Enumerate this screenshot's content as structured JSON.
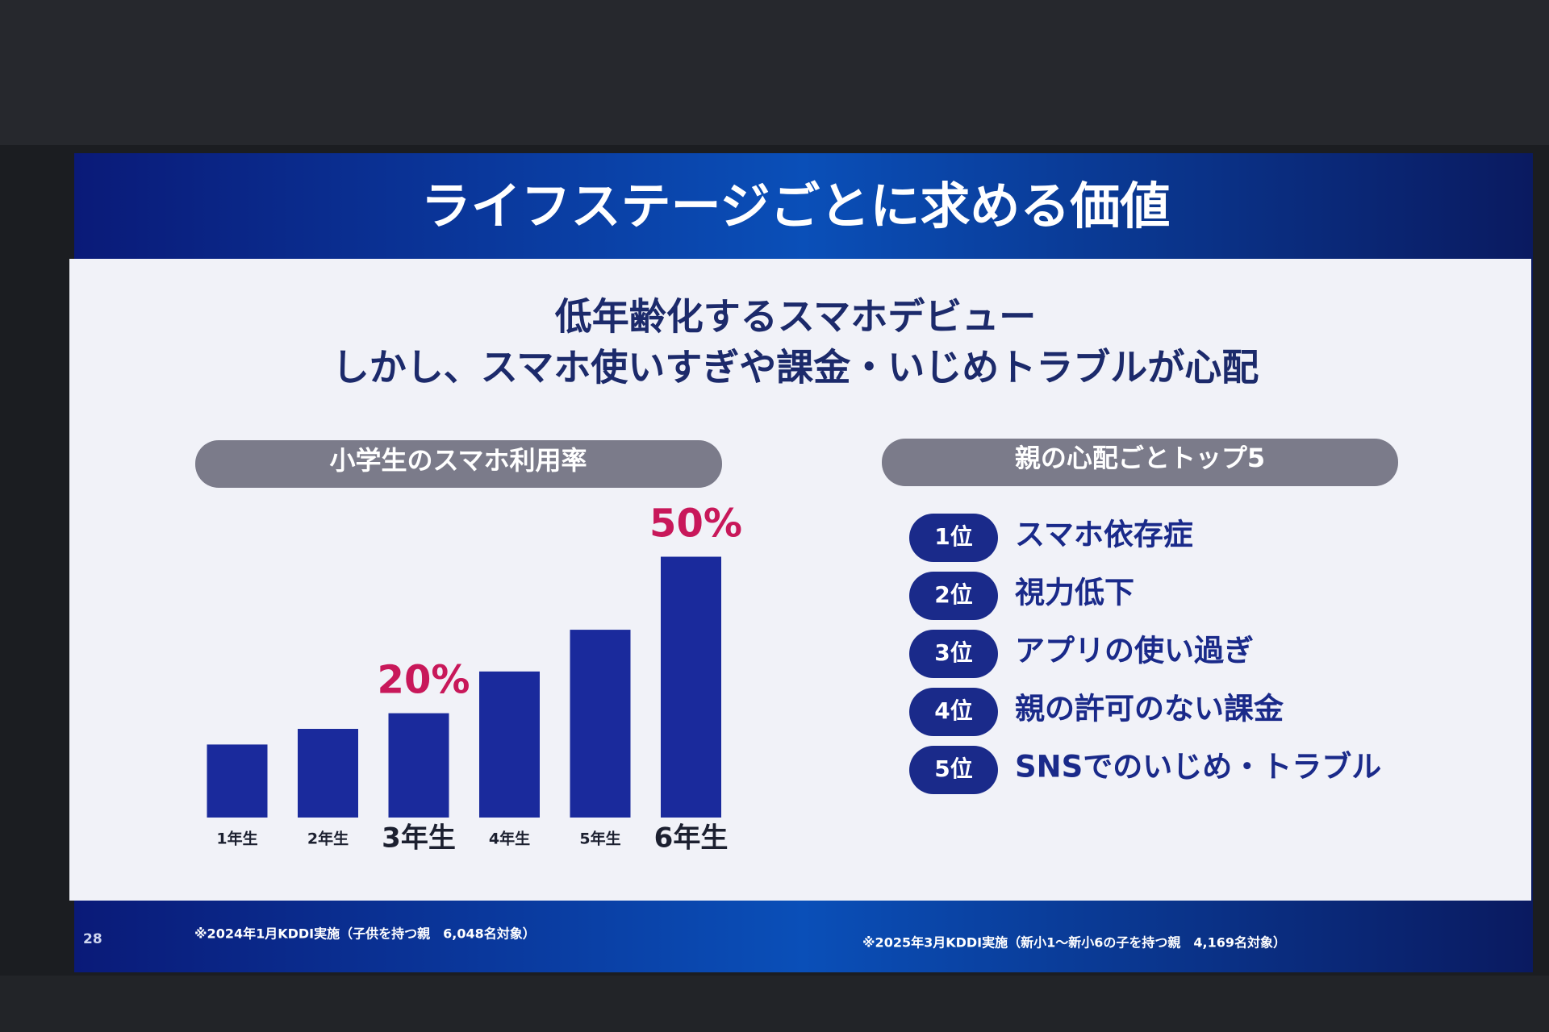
{
  "slide": {
    "title": "ライフステージごとに求める価値",
    "subtitle_lines": [
      "低年齢化するスマホデビュー",
      "しかし、スマホ使いすぎや課金・いじめトラブルが心配"
    ],
    "page_number": "28",
    "left_note": "※2024年1月KDDI実施（子供を持つ親　6,048名対象）",
    "right_panel": {
      "title": "親の心配ごとトップ5",
      "ranks": [
        {
          "rank": "1位",
          "item": "スマホ依存症"
        },
        {
          "rank": "2位",
          "item": "視力低下"
        },
        {
          "rank": "3位",
          "item": "アプリの使い過ぎ"
        },
        {
          "rank": "4位",
          "item": "親の許可のない課金"
        },
        {
          "rank": "5位",
          "item": "SNSでのいじめ・トラブル"
        }
      ],
      "note": "※2025年3月KDDI実施（新小1〜新小6の子を持つ親　4,169名対象）"
    }
  },
  "chart_data": {
    "type": "bar",
    "title": "小学生のスマホ利用率",
    "categories": [
      "1年生",
      "2年生",
      "3年生",
      "4年生",
      "5年生",
      "6年生"
    ],
    "values": [
      14,
      17,
      20,
      28,
      36,
      50
    ],
    "value_labels": [
      null,
      null,
      "20%",
      null,
      null,
      "50%"
    ],
    "color": "#1a2a9c",
    "label_color": "#c8185a"
  }
}
